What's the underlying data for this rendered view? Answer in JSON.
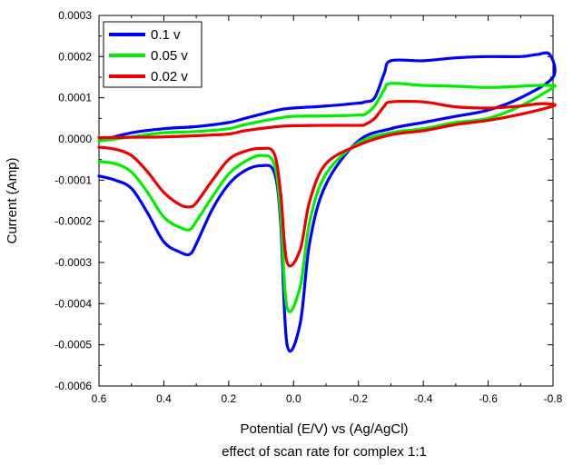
{
  "chart_data": {
    "type": "line",
    "xlabel": "Potential (E/V) vs (Ag/AgCl)",
    "ylabel": "Current (Amp)",
    "subtitle": "effect of scan rate for complex 1:1",
    "xlim": [
      0.6,
      -0.8
    ],
    "ylim": [
      -0.0006,
      0.0003
    ],
    "x_ticks": [
      "0.6",
      "0.4",
      "0.2",
      "0.0",
      "-0.2",
      "-0.4",
      "-0.6",
      "-0.8"
    ],
    "y_ticks": [
      "0.0003",
      "0.0002",
      "0.0001",
      "0.0000",
      "-0.0001",
      "-0.0002",
      "-0.0003",
      "-0.0004",
      "-0.0005",
      "-0.0006"
    ],
    "grid": false,
    "legend_position": "top-left",
    "series": [
      {
        "name": "0.1 v",
        "color": "#0000ff",
        "x": [
          0.6,
          0.55,
          0.5,
          0.45,
          0.4,
          0.35,
          0.32,
          0.3,
          0.25,
          0.2,
          0.15,
          0.1,
          0.06,
          0.04,
          0.02,
          -0.02,
          -0.05,
          -0.1,
          -0.2,
          -0.3,
          -0.4,
          -0.5,
          -0.6,
          -0.7,
          -0.8,
          -0.79,
          -0.75,
          -0.7,
          -0.6,
          -0.5,
          -0.4,
          -0.3,
          -0.28,
          -0.25,
          -0.22,
          -0.2,
          -0.1,
          0.0,
          0.05,
          0.15,
          0.2,
          0.3,
          0.4,
          0.5,
          0.6
        ],
        "y": [
          -9e-05,
          -0.0001,
          -0.00012,
          -0.00018,
          -0.00025,
          -0.000275,
          -0.00028,
          -0.000255,
          -0.00017,
          -0.00011,
          -7.7e-05,
          -6.5e-05,
          -8e-05,
          -0.0002,
          -0.0005,
          -0.00045,
          -0.00025,
          -0.00011,
          -5e-06,
          2.5e-05,
          4e-05,
          5.5e-05,
          7e-05,
          0.0001,
          0.00015,
          0.000205,
          0.000205,
          0.0002,
          0.0002,
          0.000197,
          0.00019,
          0.00019,
          0.00016,
          0.0001,
          9e-05,
          8.7e-05,
          8e-05,
          7.5e-05,
          7e-05,
          5e-05,
          4e-05,
          3e-05,
          2.5e-05,
          1.5e-05,
          -5e-06
        ]
      },
      {
        "name": "0.05 v",
        "color": "#00ee00",
        "x": [
          0.6,
          0.55,
          0.5,
          0.45,
          0.4,
          0.35,
          0.32,
          0.3,
          0.25,
          0.2,
          0.15,
          0.1,
          0.06,
          0.04,
          0.02,
          -0.02,
          -0.05,
          -0.1,
          -0.2,
          -0.3,
          -0.4,
          -0.5,
          -0.6,
          -0.7,
          -0.8,
          -0.79,
          -0.75,
          -0.7,
          -0.6,
          -0.5,
          -0.4,
          -0.3,
          -0.28,
          -0.25,
          -0.22,
          -0.2,
          -0.1,
          0.0,
          0.05,
          0.15,
          0.2,
          0.3,
          0.4,
          0.5,
          0.6
        ],
        "y": [
          -5.5e-05,
          -6e-05,
          -8e-05,
          -0.00013,
          -0.00019,
          -0.000215,
          -0.00022,
          -0.0002,
          -0.00014,
          -8.5e-05,
          -5.5e-05,
          -4e-05,
          -6e-05,
          -0.00018,
          -0.00041,
          -0.00036,
          -0.0002,
          -8.5e-05,
          -1e-05,
          1.5e-05,
          2.5e-05,
          4e-05,
          5e-05,
          8e-05,
          0.000125,
          0.00013,
          0.00013,
          0.000128,
          0.000125,
          0.000128,
          0.00013,
          0.000135,
          0.00012,
          8e-05,
          6e-05,
          5.8e-05,
          5.6e-05,
          5.5e-05,
          5e-05,
          3.5e-05,
          2.5e-05,
          1.8e-05,
          1.5e-05,
          5e-06,
          -5e-06
        ]
      },
      {
        "name": "0.02 v",
        "color": "#ee0000",
        "x": [
          0.6,
          0.55,
          0.5,
          0.45,
          0.4,
          0.35,
          0.32,
          0.3,
          0.25,
          0.2,
          0.15,
          0.1,
          0.06,
          0.04,
          0.02,
          -0.02,
          -0.05,
          -0.1,
          -0.2,
          -0.3,
          -0.4,
          -0.5,
          -0.6,
          -0.7,
          -0.8,
          -0.79,
          -0.75,
          -0.7,
          -0.6,
          -0.5,
          -0.4,
          -0.3,
          -0.28,
          -0.25,
          -0.22,
          -0.2,
          -0.1,
          0.0,
          0.05,
          0.15,
          0.2,
          0.3,
          0.4,
          0.5,
          0.6
        ],
        "y": [
          -2e-05,
          -2.5e-05,
          -4e-05,
          -8e-05,
          -0.00013,
          -0.00016,
          -0.000165,
          -0.000155,
          -0.0001,
          -5e-05,
          -3e-05,
          -2.3e-05,
          -3.5e-05,
          -0.00013,
          -0.0003,
          -0.00027,
          -0.00015,
          -6e-05,
          -1.5e-05,
          1e-05,
          2e-05,
          3.5e-05,
          4.5e-05,
          6e-05,
          8e-05,
          8.5e-05,
          8.5e-05,
          8e-05,
          7.5e-05,
          7.8e-05,
          9e-05,
          9e-05,
          8e-05,
          5e-05,
          3.5e-05,
          3.3e-05,
          3.3e-05,
          3.2e-05,
          3e-05,
          2e-05,
          1.2e-05,
          8e-06,
          5e-06,
          4e-06,
          3e-06
        ]
      }
    ]
  }
}
